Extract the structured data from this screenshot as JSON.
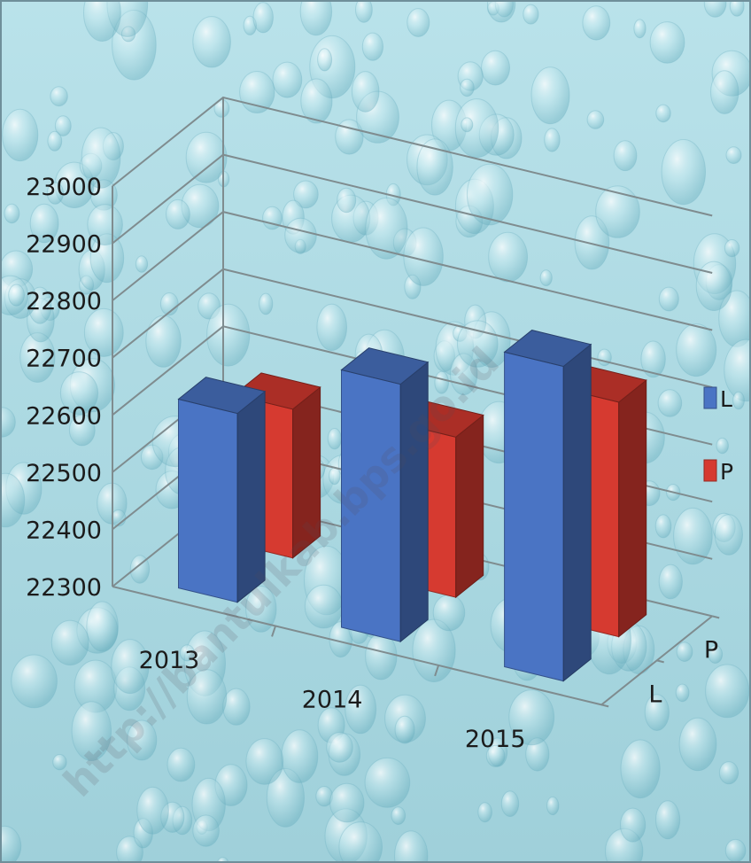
{
  "chart_data": {
    "type": "bar",
    "subtype": "3d-clustered-column",
    "categories": [
      "2013",
      "2014",
      "2015"
    ],
    "series": [
      {
        "name": "L",
        "values": [
          22630,
          22750,
          22850
        ],
        "color": "#4a74c4"
      },
      {
        "name": "P",
        "values": [
          22560,
          22580,
          22710
        ],
        "color": "#d63a30"
      }
    ],
    "depth_axis_labels": [
      "L",
      "P"
    ],
    "y_ticks": [
      "22300",
      "22400",
      "22500",
      "22600",
      "22700",
      "22800",
      "22900",
      "23000"
    ],
    "ylim": [
      22300,
      23000
    ],
    "grid": true,
    "legend_position": "right",
    "background": "water-drops texture, light aqua",
    "colors": {
      "background": "#a9d7e0",
      "grid": "#7f8c8f",
      "L": "#4a74c4",
      "P": "#d63a30"
    }
  },
  "watermark_text": "http://bantulkab.bps.go.id"
}
